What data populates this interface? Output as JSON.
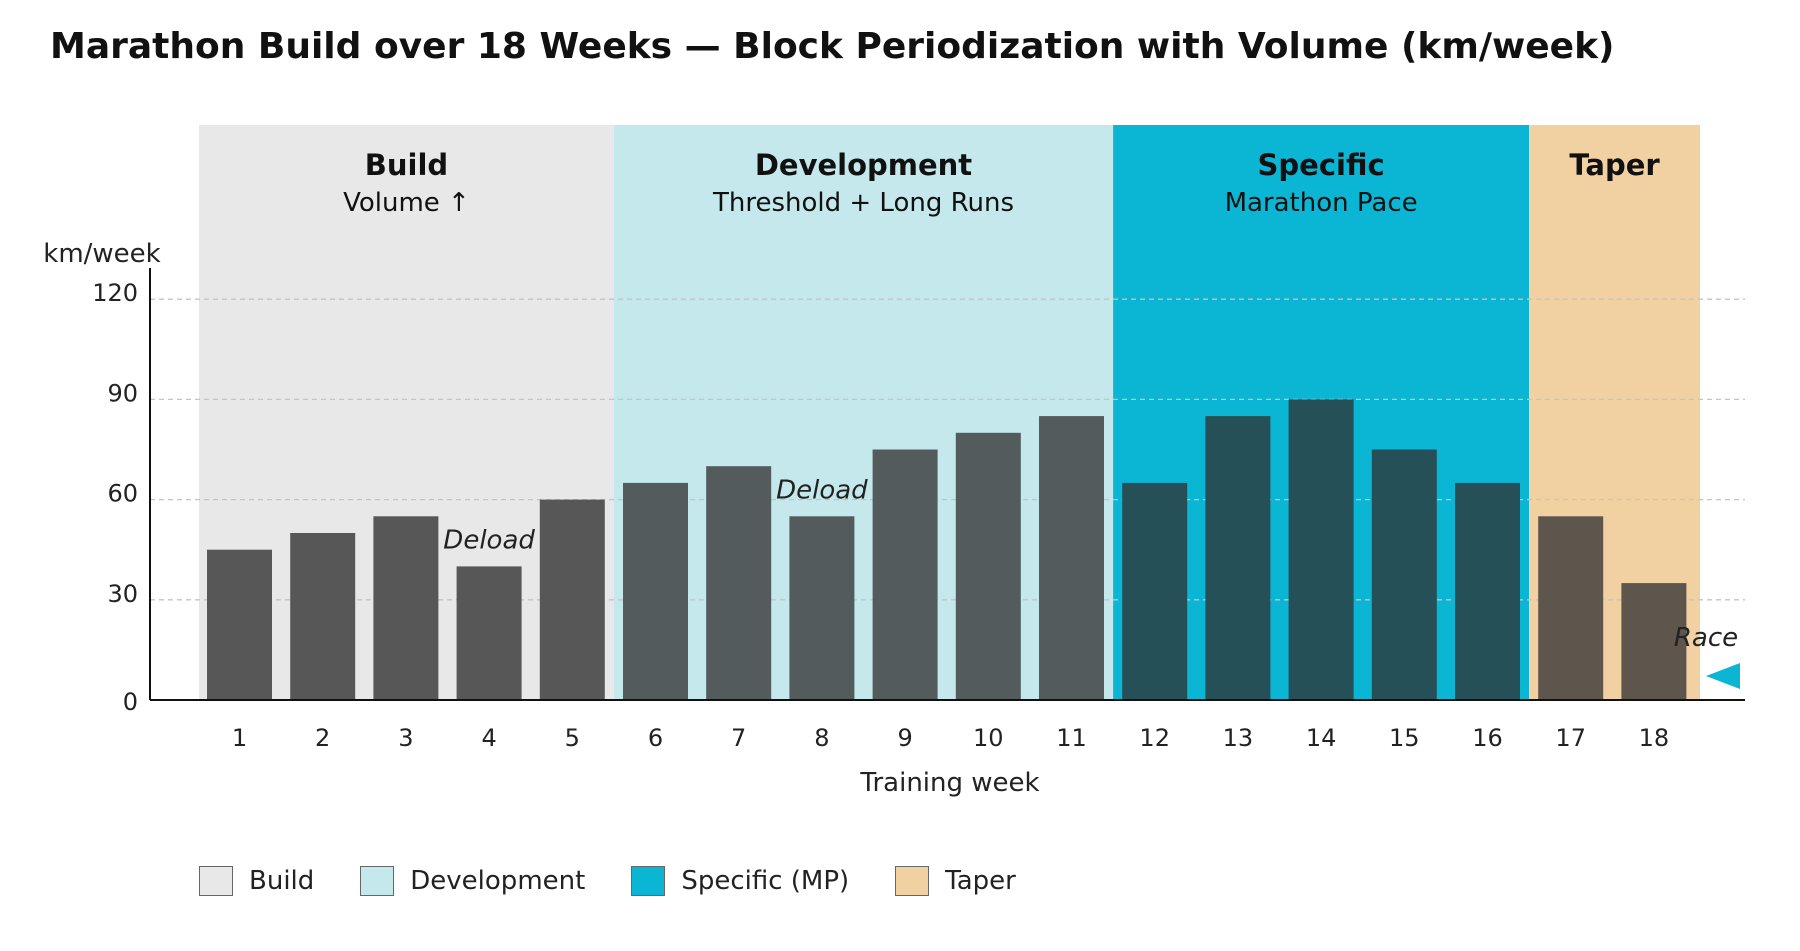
{
  "chart_data": {
    "type": "bar",
    "title": "Marathon Build over 18 Weeks — Block Periodization with Volume (km/week)",
    "xlabel": "Training week",
    "ylabel": "km/week",
    "ylim": [
      0,
      130
    ],
    "yticks": [
      0,
      30,
      60,
      90,
      120
    ],
    "grid": true,
    "legend_position": "bottom",
    "categories": [
      "1",
      "2",
      "3",
      "4",
      "5",
      "6",
      "7",
      "8",
      "9",
      "10",
      "11",
      "12",
      "13",
      "14",
      "15",
      "16",
      "17",
      "18"
    ],
    "values": [
      45,
      50,
      55,
      40,
      60,
      65,
      70,
      55,
      75,
      80,
      85,
      65,
      85,
      90,
      75,
      65,
      55,
      35
    ],
    "phases": [
      {
        "name": "Build",
        "subtitle": "Volume ↑",
        "weeks": [
          1,
          5
        ],
        "color": "#e8e8e8",
        "bar_color": "#575757",
        "text_color": "#111111",
        "legend": "Build"
      },
      {
        "name": "Development",
        "subtitle": "Threshold + Long Runs",
        "weeks": [
          6,
          11
        ],
        "color": "#c4e8eb",
        "bar_color": "#545b5d",
        "text_color": "#111111",
        "legend": "Development"
      },
      {
        "name": "Specific",
        "subtitle": "Marathon Pace",
        "weeks": [
          12,
          16
        ],
        "color": "#0bb5d4",
        "bar_color": "#255058",
        "text_color": "#111111",
        "legend": "Specific (MP)"
      },
      {
        "name": "Taper",
        "subtitle": "",
        "weeks": [
          17,
          18
        ],
        "color": "#f1d1a2",
        "bar_color": "#5e564c",
        "text_color": "#111111",
        "legend": "Taper"
      }
    ],
    "annotations": [
      {
        "text": "Deload",
        "week": 4
      },
      {
        "text": "Deload",
        "week": 8
      }
    ],
    "race_marker": {
      "text": "Race",
      "week": 18,
      "color": "#0bb5d4"
    }
  }
}
